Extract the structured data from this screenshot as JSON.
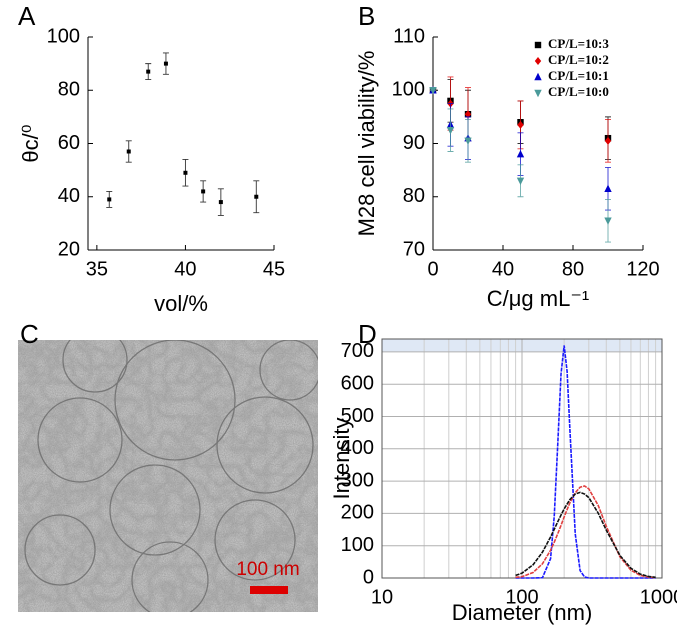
{
  "chart_data": [
    {
      "type": "scatter",
      "panel_label": "A",
      "x_label": "vol/%",
      "y_label": "θc/⁰",
      "x": [
        35.7,
        36.8,
        37.9,
        38.9,
        40.0,
        41.0,
        42.0,
        44.0
      ],
      "values": [
        39,
        57,
        87,
        90,
        49,
        42,
        38,
        40
      ],
      "errors": [
        3,
        4,
        3,
        4,
        5,
        4,
        5,
        6
      ],
      "color": "#000000",
      "xlim": [
        34.5,
        45
      ],
      "xticks": [
        35,
        40,
        45
      ],
      "ylim": [
        20,
        100
      ],
      "yticks": [
        20,
        40,
        60,
        80,
        100
      ]
    },
    {
      "type": "scatter",
      "panel_label": "B",
      "x_label": "C/μg mL⁻¹",
      "y_label": "M28 cell viability/%",
      "x": [
        0,
        10,
        20,
        50,
        100
      ],
      "series": [
        {
          "name": "CP/L=10:3",
          "color": "#000000",
          "marker": "square",
          "values": [
            100,
            98,
            95.5,
            94,
            91
          ],
          "errors": [
            0,
            4,
            4.5,
            4,
            4
          ]
        },
        {
          "name": "CP/L=10:2",
          "color": "#e00000",
          "marker": "diamond",
          "values": [
            100,
            97.5,
            95.5,
            93.5,
            90.5
          ],
          "errors": [
            0,
            5,
            5,
            4.5,
            4
          ]
        },
        {
          "name": "CP/L=10:1",
          "color": "#0000cc",
          "marker": "triangle-up",
          "values": [
            100,
            93.5,
            91,
            88,
            81.5
          ],
          "errors": [
            0,
            4,
            4,
            4,
            4
          ]
        },
        {
          "name": "CP/L=10:0",
          "color": "#4a9a9a",
          "marker": "triangle-down",
          "values": [
            100,
            92.5,
            90.5,
            83,
            75.5
          ],
          "errors": [
            0,
            4,
            4,
            3,
            4
          ]
        }
      ],
      "legend": "upper right",
      "xlim": [
        0,
        120
      ],
      "xticks": [
        0,
        40,
        80,
        120
      ],
      "ylim": [
        70,
        110
      ],
      "yticks": [
        70,
        80,
        90,
        100,
        110
      ]
    },
    {
      "type": "line",
      "panel_label": "D",
      "x_label": "Diameter (nm)",
      "y_label": "Intensity",
      "x_scale": "log",
      "grid": true,
      "x": [
        90,
        100,
        120,
        140,
        160,
        170,
        180,
        190,
        200,
        210,
        220,
        240,
        260,
        280,
        300,
        350,
        400,
        500,
        600,
        700,
        800,
        900
      ],
      "series": [
        {
          "color": "#1a1aff",
          "values": [
            0,
            0,
            0,
            1,
            60,
            192,
            413,
            632,
            720,
            639,
            457,
            137,
            23,
            3,
            0,
            0,
            0,
            0,
            0,
            0,
            0,
            0
          ]
        },
        {
          "color": "#e04040",
          "values": [
            2,
            4,
            17,
            44,
            86,
            111,
            137,
            163,
            189,
            212,
            233,
            264,
            281,
            285,
            276,
            225,
            160,
            66,
            24,
            8,
            3,
            1
          ]
        },
        {
          "color": "#111111",
          "values": [
            8,
            15,
            41,
            80,
            127,
            151,
            174,
            195,
            214,
            229,
            243,
            260,
            265,
            260,
            249,
            201,
            148,
            70,
            30,
            12,
            5,
            2
          ]
        }
      ],
      "xlim": [
        10,
        1000
      ],
      "xticks": [
        10,
        100,
        1000
      ],
      "xgrid_minor": [
        20,
        30,
        40,
        50,
        60,
        70,
        80,
        90,
        200,
        300,
        400,
        500,
        600,
        700,
        800,
        900
      ],
      "ylim": [
        0,
        740
      ],
      "yticks": [
        0,
        100,
        200,
        300,
        400,
        500,
        600,
        700
      ]
    }
  ],
  "image_panel": {
    "panel_label": "C",
    "scale_bar_label": "100 nm"
  }
}
